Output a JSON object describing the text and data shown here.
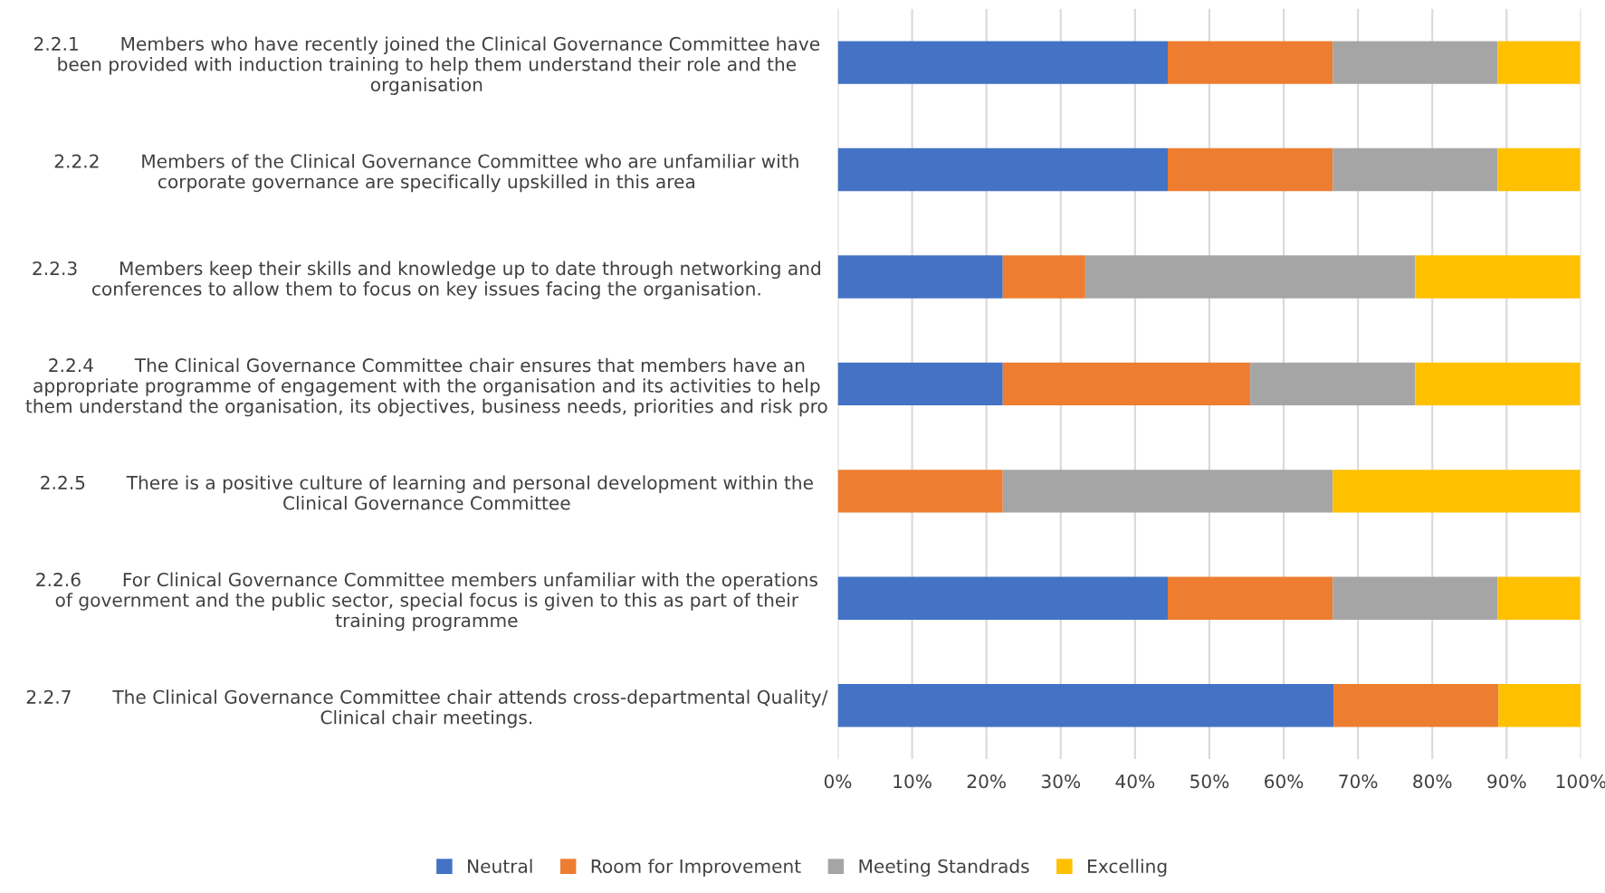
{
  "chart_data": {
    "type": "bar",
    "orientation": "horizontal",
    "stacked": true,
    "categories": [
      "2.2.1       Members who have recently joined the Clinical Governance Committee have\nbeen provided with induction training to help them understand their role and the\norganisation",
      "2.2.2       Members of the Clinical Governance Committee who are unfamiliar with\ncorporate governance are specifically upskilled in this area",
      "2.2.3       Members keep their skills and knowledge up to date through networking and\nconferences to allow them to focus on key issues facing the organisation.",
      "2.2.4       The Clinical Governance Committee chair ensures that members have an\nappropriate programme of engagement with the organisation and its activities to help\nthem understand the organisation, its objectives, business needs, priorities and risk pro",
      "2.2.5       There is a positive culture of learning and personal development within the\nClinical Governance Committee",
      "2.2.6       For Clinical Governance Committee members unfamiliar with the operations\nof government and the public sector, special focus is given to this as part of their\ntraining programme",
      "2.2.7       The Clinical Governance Committee chair attends cross-departmental Quality/\nClinical chair meetings."
    ],
    "series": [
      {
        "name": "Neutral",
        "color": "#4472c4",
        "values": [
          44.4,
          44.4,
          22.2,
          22.2,
          0,
          44.4,
          66.7
        ]
      },
      {
        "name": "Room for Improvement",
        "color": "#ed7d31",
        "values": [
          22.2,
          22.2,
          11.1,
          33.3,
          22.2,
          22.2,
          22.2
        ]
      },
      {
        "name": "Meeting Standrads",
        "color": "#a5a5a5",
        "values": [
          22.2,
          22.2,
          44.4,
          22.2,
          44.4,
          22.2,
          0
        ]
      },
      {
        "name": "Excelling",
        "color": "#ffc000",
        "values": [
          11.1,
          11.1,
          22.2,
          22.2,
          33.3,
          11.1,
          11.1
        ]
      }
    ],
    "xlim": [
      0,
      100
    ],
    "xticks": [
      {
        "value": 0,
        "label": "0%"
      },
      {
        "value": 10,
        "label": "10%"
      },
      {
        "value": 20,
        "label": "20%"
      },
      {
        "value": 30,
        "label": "30%"
      },
      {
        "value": 40,
        "label": "40%"
      },
      {
        "value": 50,
        "label": "50%"
      },
      {
        "value": 60,
        "label": "60%"
      },
      {
        "value": 70,
        "label": "70%"
      },
      {
        "value": 80,
        "label": "80%"
      },
      {
        "value": 90,
        "label": "90%"
      },
      {
        "value": 100,
        "label": "100%"
      }
    ],
    "grid": "x",
    "legend": "bottom"
  }
}
